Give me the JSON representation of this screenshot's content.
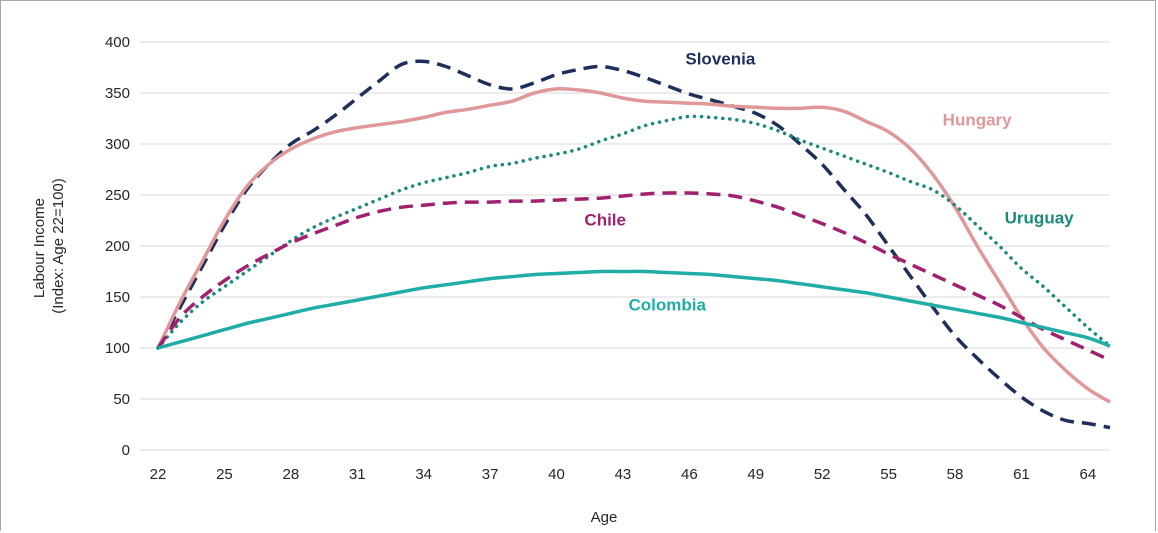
{
  "chart_data": {
    "type": "line",
    "xlabel": "Age",
    "ylabel_line1": "Labour Income",
    "ylabel_line2": "(Index: Age 22=100)",
    "xlim": [
      22,
      65
    ],
    "ylim": [
      0,
      400
    ],
    "yticks": [
      0,
      50,
      100,
      150,
      200,
      250,
      300,
      350,
      400
    ],
    "xticks": [
      22,
      25,
      28,
      31,
      34,
      37,
      40,
      43,
      46,
      49,
      52,
      55,
      58,
      61,
      64
    ],
    "grid": true,
    "legend": "none (series labelled inline)",
    "series": [
      {
        "name": "Slovenia",
        "color": "#1f2f5c",
        "style": "dashed",
        "x": [
          22,
          23,
          24,
          25,
          26,
          27,
          28,
          29,
          30,
          31,
          32,
          33,
          34,
          35,
          36,
          37,
          38,
          39,
          40,
          41,
          42,
          43,
          44,
          45,
          46,
          47,
          48,
          49,
          50,
          51,
          52,
          53,
          54,
          55,
          56,
          57,
          58,
          59,
          60,
          61,
          62,
          63,
          64,
          65
        ],
        "values": [
          100,
          140,
          180,
          220,
          255,
          280,
          300,
          313,
          328,
          345,
          362,
          378,
          381,
          376,
          367,
          358,
          354,
          360,
          368,
          373,
          376,
          372,
          365,
          357,
          349,
          343,
          337,
          330,
          318,
          300,
          280,
          255,
          230,
          200,
          170,
          140,
          112,
          90,
          70,
          52,
          38,
          29,
          26,
          22
        ]
      },
      {
        "name": "Hungary",
        "color": "#e0979a",
        "style": "solid",
        "x": [
          22,
          23,
          24,
          25,
          26,
          27,
          28,
          29,
          30,
          31,
          32,
          33,
          34,
          35,
          36,
          37,
          38,
          39,
          40,
          41,
          42,
          43,
          44,
          45,
          46,
          47,
          48,
          49,
          50,
          51,
          52,
          53,
          54,
          55,
          56,
          57,
          58,
          59,
          60,
          61,
          62,
          63,
          64,
          65
        ],
        "values": [
          100,
          145,
          185,
          225,
          258,
          280,
          295,
          305,
          312,
          316,
          319,
          322,
          326,
          331,
          334,
          338,
          342,
          350,
          354,
          353,
          350,
          345,
          342,
          341,
          340,
          339,
          337,
          336,
          335,
          335,
          336,
          332,
          322,
          312,
          295,
          270,
          238,
          200,
          165,
          130,
          100,
          78,
          60,
          47
        ]
      },
      {
        "name": "Uruguay",
        "color": "#1a8a7c",
        "style": "dotted",
        "x": [
          22,
          23,
          24,
          25,
          26,
          27,
          28,
          29,
          30,
          31,
          32,
          33,
          34,
          35,
          36,
          37,
          38,
          39,
          40,
          41,
          42,
          43,
          44,
          45,
          46,
          47,
          48,
          49,
          50,
          51,
          52,
          53,
          54,
          55,
          56,
          57,
          58,
          59,
          60,
          61,
          62,
          63,
          64,
          65
        ],
        "values": [
          100,
          125,
          145,
          160,
          175,
          190,
          205,
          218,
          228,
          237,
          246,
          255,
          262,
          267,
          272,
          278,
          281,
          286,
          290,
          295,
          303,
          310,
          318,
          323,
          327,
          326,
          324,
          320,
          313,
          304,
          296,
          288,
          280,
          272,
          263,
          255,
          240,
          220,
          200,
          178,
          160,
          140,
          120,
          102
        ]
      },
      {
        "name": "Chile",
        "color": "#a0216e",
        "style": "dashed",
        "x": [
          22,
          23,
          24,
          25,
          26,
          27,
          28,
          29,
          30,
          31,
          32,
          33,
          34,
          35,
          36,
          37,
          38,
          39,
          40,
          41,
          42,
          43,
          44,
          45,
          46,
          47,
          48,
          49,
          50,
          51,
          52,
          53,
          54,
          55,
          56,
          57,
          58,
          59,
          60,
          61,
          62,
          63,
          64,
          65
        ],
        "values": [
          100,
          130,
          150,
          166,
          180,
          192,
          203,
          212,
          220,
          228,
          234,
          238,
          240,
          242,
          243,
          243,
          244,
          244,
          245,
          246,
          247,
          249,
          251,
          252,
          252,
          251,
          249,
          244,
          238,
          230,
          222,
          213,
          203,
          192,
          182,
          172,
          162,
          152,
          142,
          130,
          118,
          108,
          98,
          88
        ]
      },
      {
        "name": "Colombia",
        "color": "#1fada5",
        "style": "solid",
        "x": [
          22,
          23,
          24,
          25,
          26,
          27,
          28,
          29,
          30,
          31,
          32,
          33,
          34,
          35,
          36,
          37,
          38,
          39,
          40,
          41,
          42,
          43,
          44,
          45,
          46,
          47,
          48,
          49,
          50,
          51,
          52,
          53,
          54,
          55,
          56,
          57,
          58,
          59,
          60,
          61,
          62,
          63,
          64,
          65
        ],
        "values": [
          100,
          106,
          112,
          118,
          124,
          129,
          134,
          139,
          143,
          147,
          151,
          155,
          159,
          162,
          165,
          168,
          170,
          172,
          173,
          174,
          175,
          175,
          175,
          174,
          173,
          172,
          170,
          168,
          166,
          163,
          160,
          157,
          154,
          150,
          146,
          142,
          138,
          134,
          130,
          125,
          120,
          115,
          110,
          102
        ]
      }
    ],
    "annotations": [
      {
        "text": "Slovenia",
        "color": "#1f2f5c",
        "x": 47.4,
        "y": 378
      },
      {
        "text": "Hungary",
        "color": "#e0979a",
        "x": 59.0,
        "y": 318
      },
      {
        "text": "Uruguay",
        "color": "#1a8a7c",
        "x": 61.8,
        "y": 222
      },
      {
        "text": "Chile",
        "color": "#a0216e",
        "x": 42.2,
        "y": 220
      },
      {
        "text": "Colombia",
        "color": "#1fada5",
        "x": 45.0,
        "y": 137
      }
    ]
  }
}
